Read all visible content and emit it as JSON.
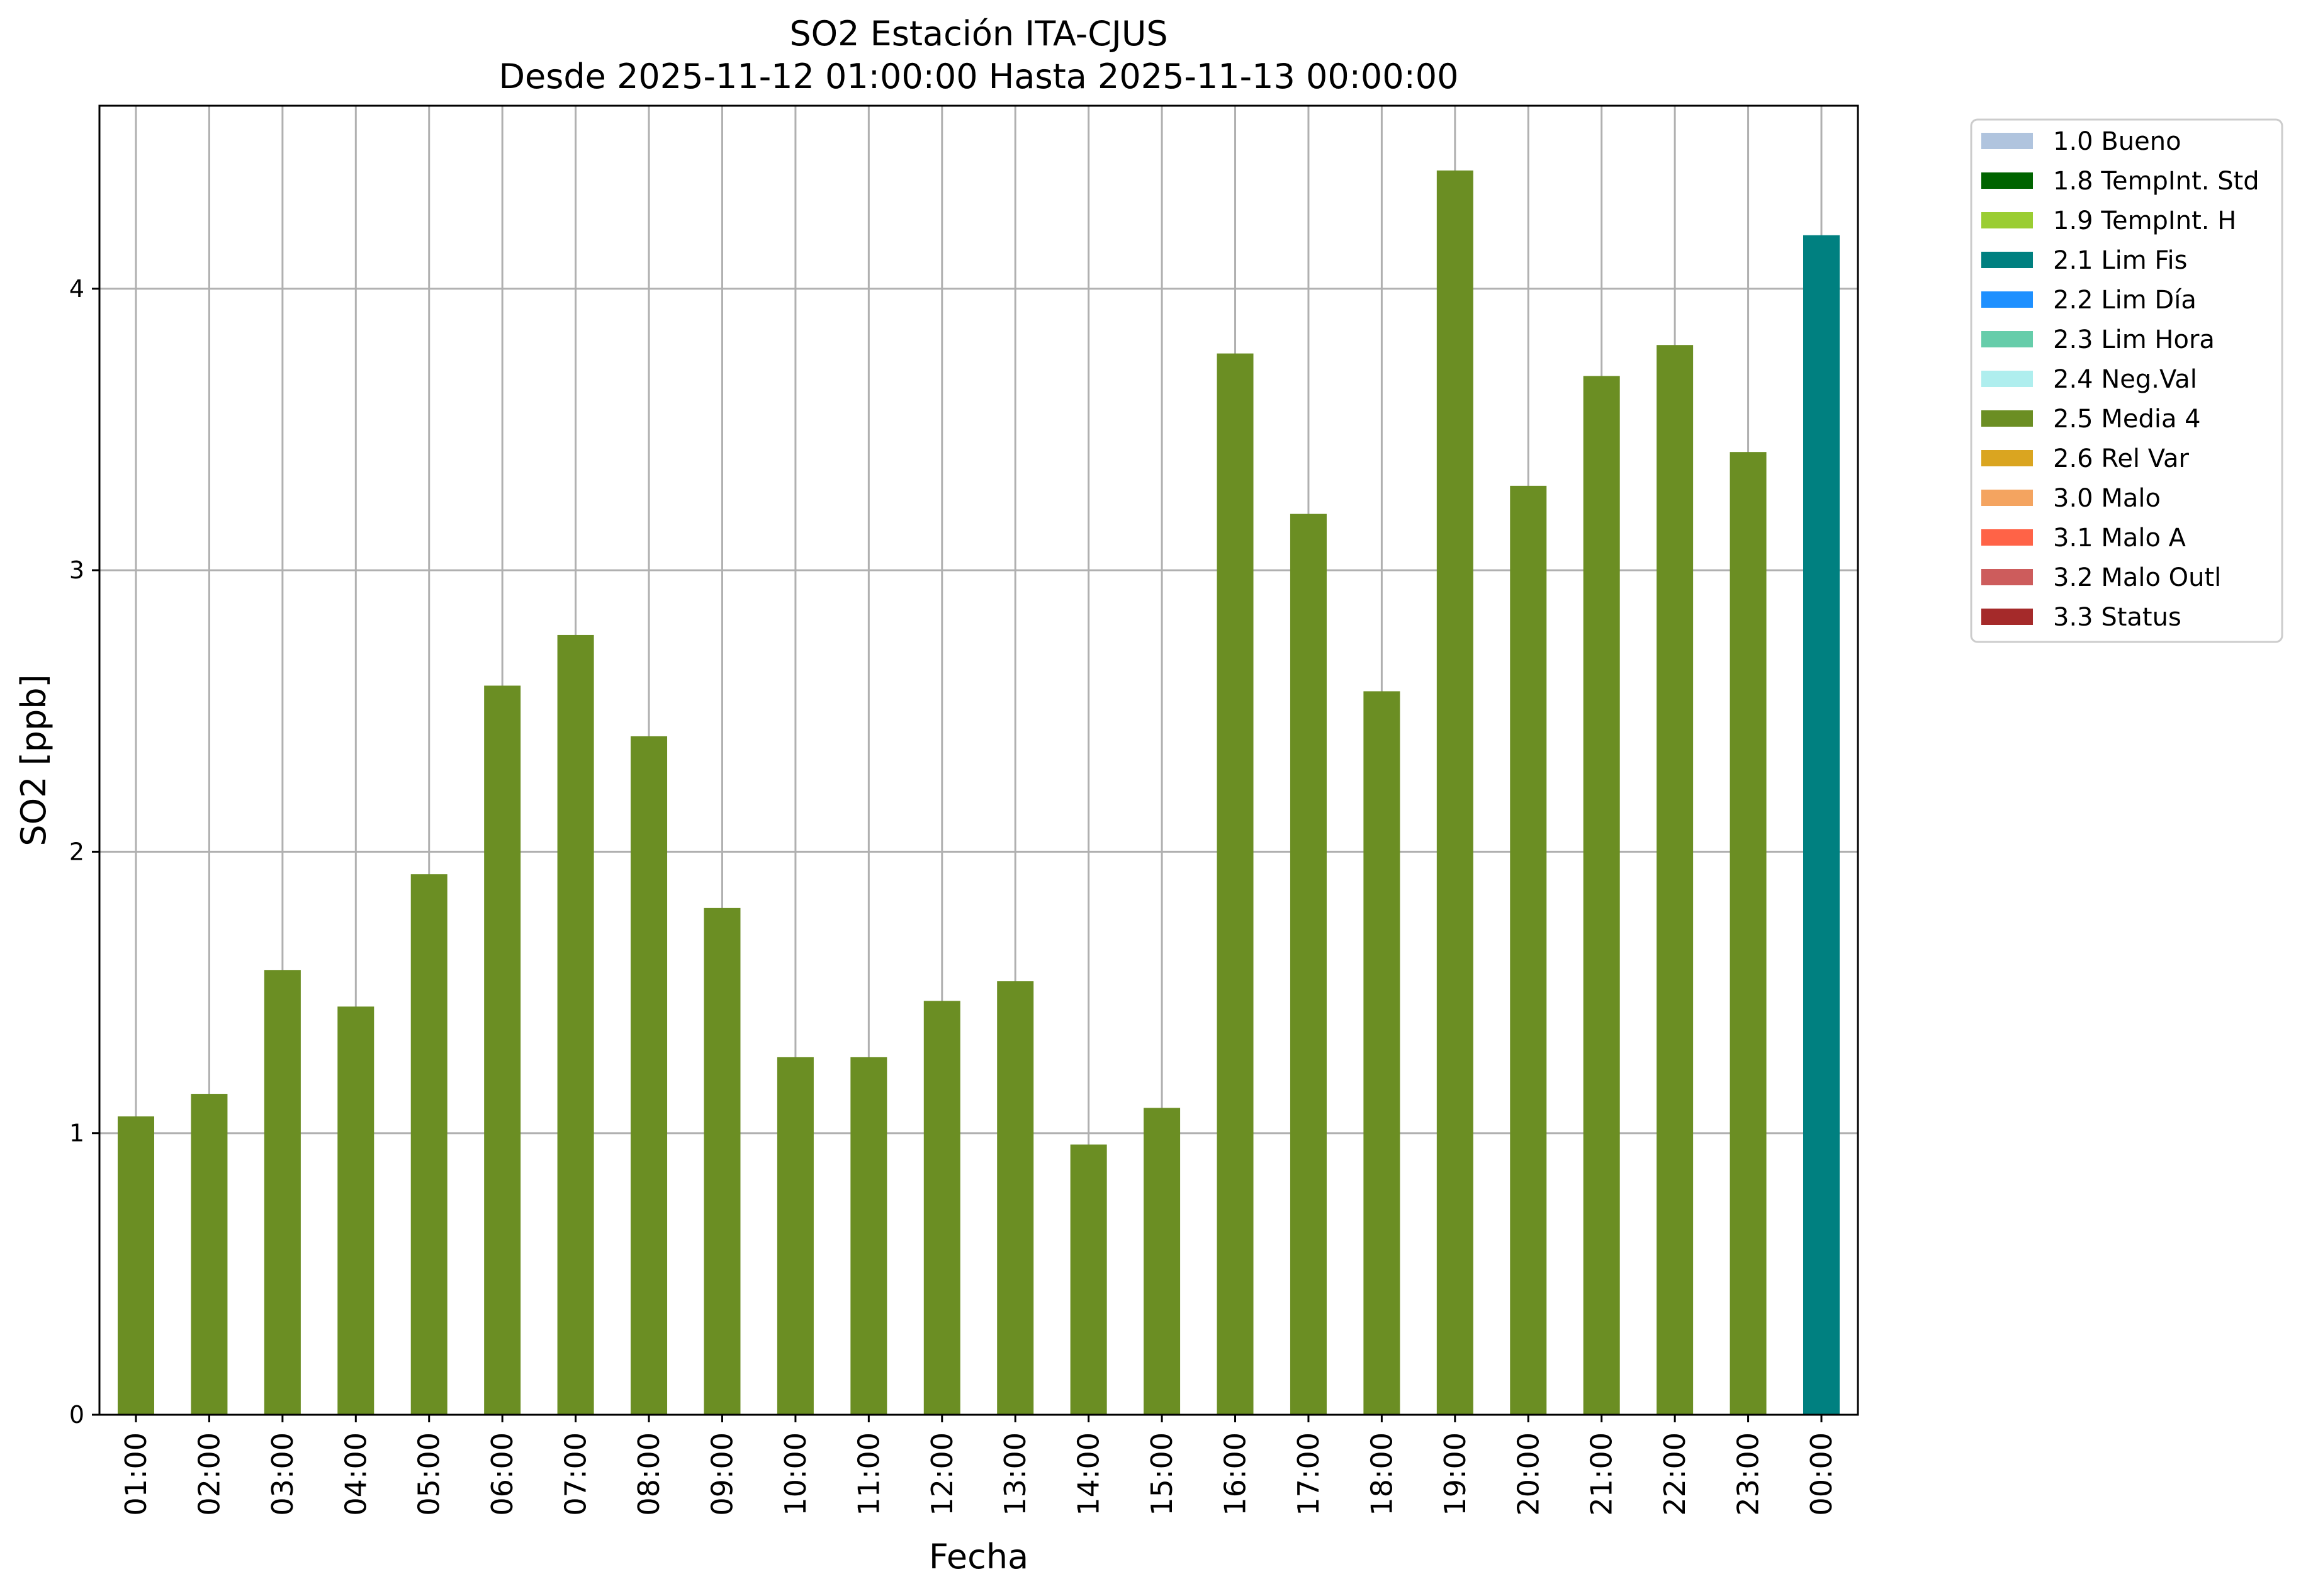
{
  "chart_data": {
    "type": "bar",
    "title": "SO2 Estación ITA-CJUS",
    "subtitle": "Desde 2025-11-12 01:00:00 Hasta 2025-11-13 00:00:00",
    "xlabel": "Fecha",
    "ylabel": "SO2 [ppb]",
    "ylim": [
      0,
      4.65
    ],
    "yticks": [
      0,
      1,
      2,
      3,
      4
    ],
    "grid": true,
    "legend_position": "outside-top-right",
    "categories": [
      "01:00",
      "02:00",
      "03:00",
      "04:00",
      "05:00",
      "06:00",
      "07:00",
      "08:00",
      "09:00",
      "10:00",
      "11:00",
      "12:00",
      "13:00",
      "14:00",
      "15:00",
      "16:00",
      "17:00",
      "18:00",
      "19:00",
      "20:00",
      "21:00",
      "22:00",
      "23:00",
      "00:00"
    ],
    "values": [
      1.06,
      1.14,
      1.58,
      1.45,
      1.92,
      2.59,
      2.77,
      2.41,
      1.8,
      1.27,
      1.27,
      1.47,
      1.54,
      0.96,
      1.09,
      3.77,
      3.2,
      2.57,
      4.42,
      3.3,
      3.69,
      3.8,
      3.42,
      4.19
    ],
    "bar_flags": [
      "2.5 Media 4",
      "2.5 Media 4",
      "2.5 Media 4",
      "2.5 Media 4",
      "2.5 Media 4",
      "2.5 Media 4",
      "2.5 Media 4",
      "2.5 Media 4",
      "2.5 Media 4",
      "2.5 Media 4",
      "2.5 Media 4",
      "2.5 Media 4",
      "2.5 Media 4",
      "2.5 Media 4",
      "2.5 Media 4",
      "2.5 Media 4",
      "2.5 Media 4",
      "2.5 Media 4",
      "2.5 Media 4",
      "2.5 Media 4",
      "2.5 Media 4",
      "2.5 Media 4",
      "2.5 Media 4",
      "2.1 Lim Fis"
    ],
    "legend": [
      {
        "label": "1.0 Bueno",
        "color": "#b0c4de"
      },
      {
        "label": "1.8 TempInt. Std",
        "color": "#006400"
      },
      {
        "label": "1.9 TempInt. H",
        "color": "#9acd32"
      },
      {
        "label": "2.1 Lim Fis",
        "color": "#008080"
      },
      {
        "label": "2.2 Lim Día",
        "color": "#1e90ff"
      },
      {
        "label": "2.3 Lim Hora",
        "color": "#66cdaa"
      },
      {
        "label": "2.4 Neg.Val",
        "color": "#afeeee"
      },
      {
        "label": "2.5 Media 4",
        "color": "#6b8e23"
      },
      {
        "label": "2.6 Rel Var",
        "color": "#daa520"
      },
      {
        "label": "3.0 Malo",
        "color": "#f4a460"
      },
      {
        "label": "3.1 Malo A",
        "color": "#ff6347"
      },
      {
        "label": "3.2 Malo Outl",
        "color": "#cd5c5c"
      },
      {
        "label": "3.3 Status",
        "color": "#a52a2a"
      }
    ],
    "grid_color": "#b0b0b0"
  }
}
